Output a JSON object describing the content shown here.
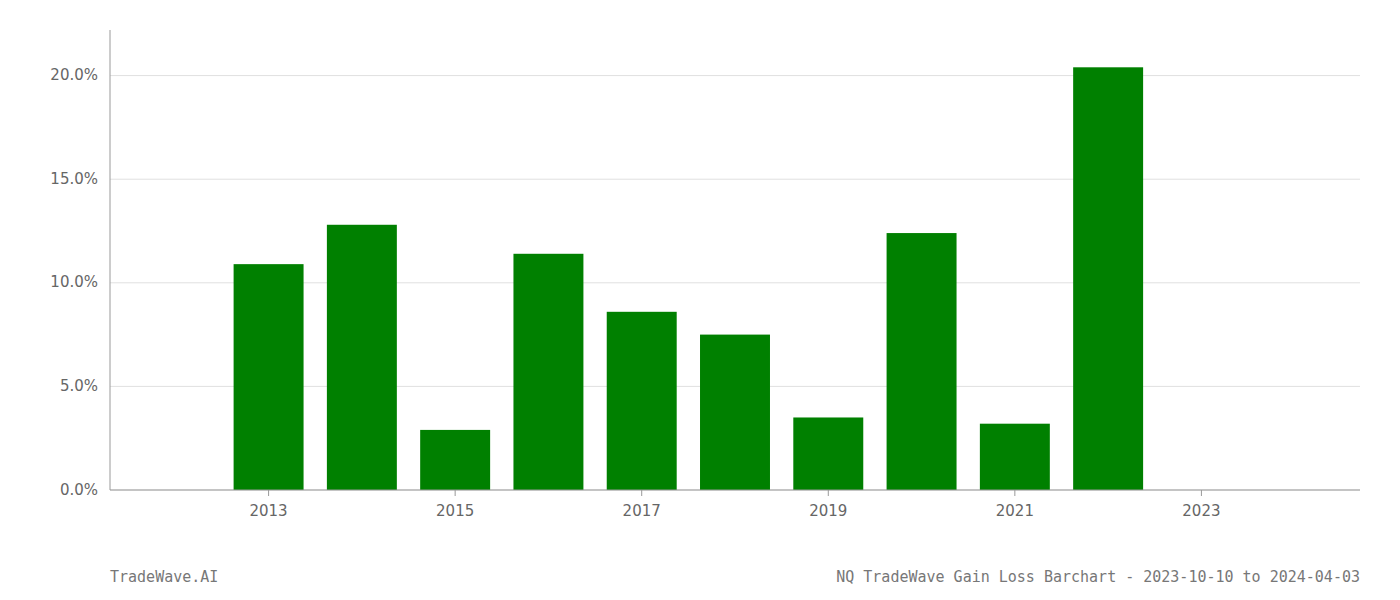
{
  "chart_data": {
    "type": "bar",
    "x": [
      2013,
      2014,
      2015,
      2016,
      2017,
      2018,
      2019,
      2020,
      2021,
      2022
    ],
    "values": [
      0.109,
      0.128,
      0.029,
      0.114,
      0.086,
      0.075,
      0.035,
      0.124,
      0.032,
      0.204
    ],
    "color": "#008000",
    "xlim": [
      2011.3,
      2024.7
    ],
    "xticks": [
      2013,
      2015,
      2017,
      2019,
      2021,
      2023
    ],
    "ylim": [
      0.0,
      0.222
    ],
    "yticks": [
      {
        "value": 0.0,
        "label": "0.0%"
      },
      {
        "value": 0.05,
        "label": "5.0%"
      },
      {
        "value": 0.1,
        "label": "10.0%"
      },
      {
        "value": 0.15,
        "label": "15.0%"
      },
      {
        "value": 0.2,
        "label": "20.0%"
      }
    ],
    "grid": true,
    "annotations": [
      "TradeWave.AI",
      "NQ TradeWave Gain Loss Barchart - 2023-10-10 to 2024-04-03"
    ]
  }
}
